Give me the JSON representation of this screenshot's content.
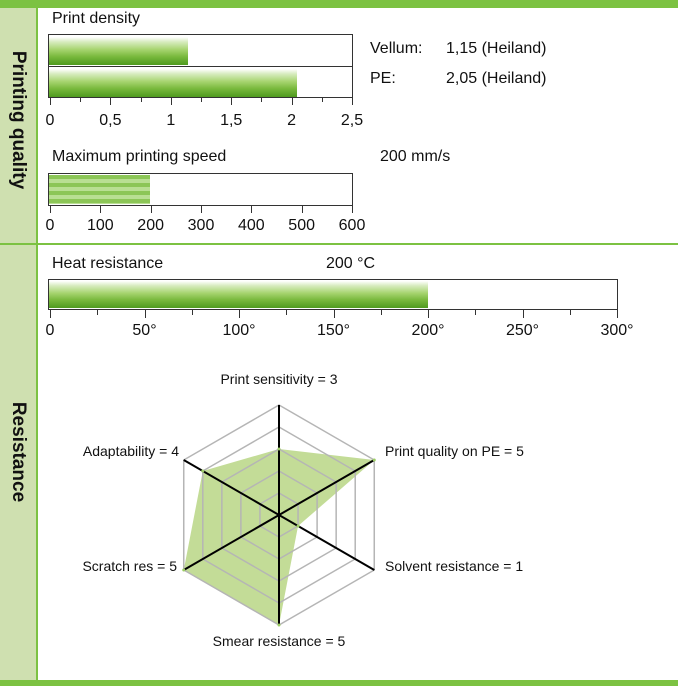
{
  "sections": {
    "printing_quality": "Printing quality",
    "resistance": "Resistance"
  },
  "colors": {
    "accent": "#7cc242",
    "sidebar": "#cfe0b0",
    "fill": "#9ccc65"
  },
  "chart_data": [
    {
      "type": "bar",
      "title": "Print density",
      "orientation": "horizontal",
      "series": [
        {
          "name": "Vellum:",
          "label": "1,15 (Heiland)",
          "value": 1.15
        },
        {
          "name": "PE:",
          "label": "2,05 (Heiland)",
          "value": 2.05
        }
      ],
      "xlim": [
        0,
        2.5
      ],
      "ticks": [
        "0",
        "0,5",
        "1",
        "1,5",
        "2",
        "2,5"
      ]
    },
    {
      "type": "bar",
      "title": "Maximum printing speed",
      "value_label": "200 mm/s",
      "orientation": "horizontal",
      "value": 200,
      "xlim": [
        0,
        600
      ],
      "ticks": [
        "0",
        "100",
        "200",
        "300",
        "400",
        "500",
        "600"
      ]
    },
    {
      "type": "bar",
      "title": "Heat resistance",
      "value_label": "200 °C",
      "orientation": "horizontal",
      "value": 200,
      "xlim": [
        0,
        300
      ],
      "ticks": [
        "0",
        "50°",
        "100°",
        "150°",
        "200°",
        "250°",
        "300°"
      ]
    },
    {
      "type": "radar",
      "max": 5,
      "axes": [
        {
          "label": "Print sensitivity = 3",
          "value": 3
        },
        {
          "label": "Print quality on PE = 5",
          "value": 5
        },
        {
          "label": "Solvent resistance = 1",
          "value": 1
        },
        {
          "label": "Smear resistance = 5",
          "value": 5
        },
        {
          "label": "Scratch res = 5",
          "value": 5
        },
        {
          "label": "Adaptability = 4",
          "value": 4
        }
      ]
    }
  ]
}
